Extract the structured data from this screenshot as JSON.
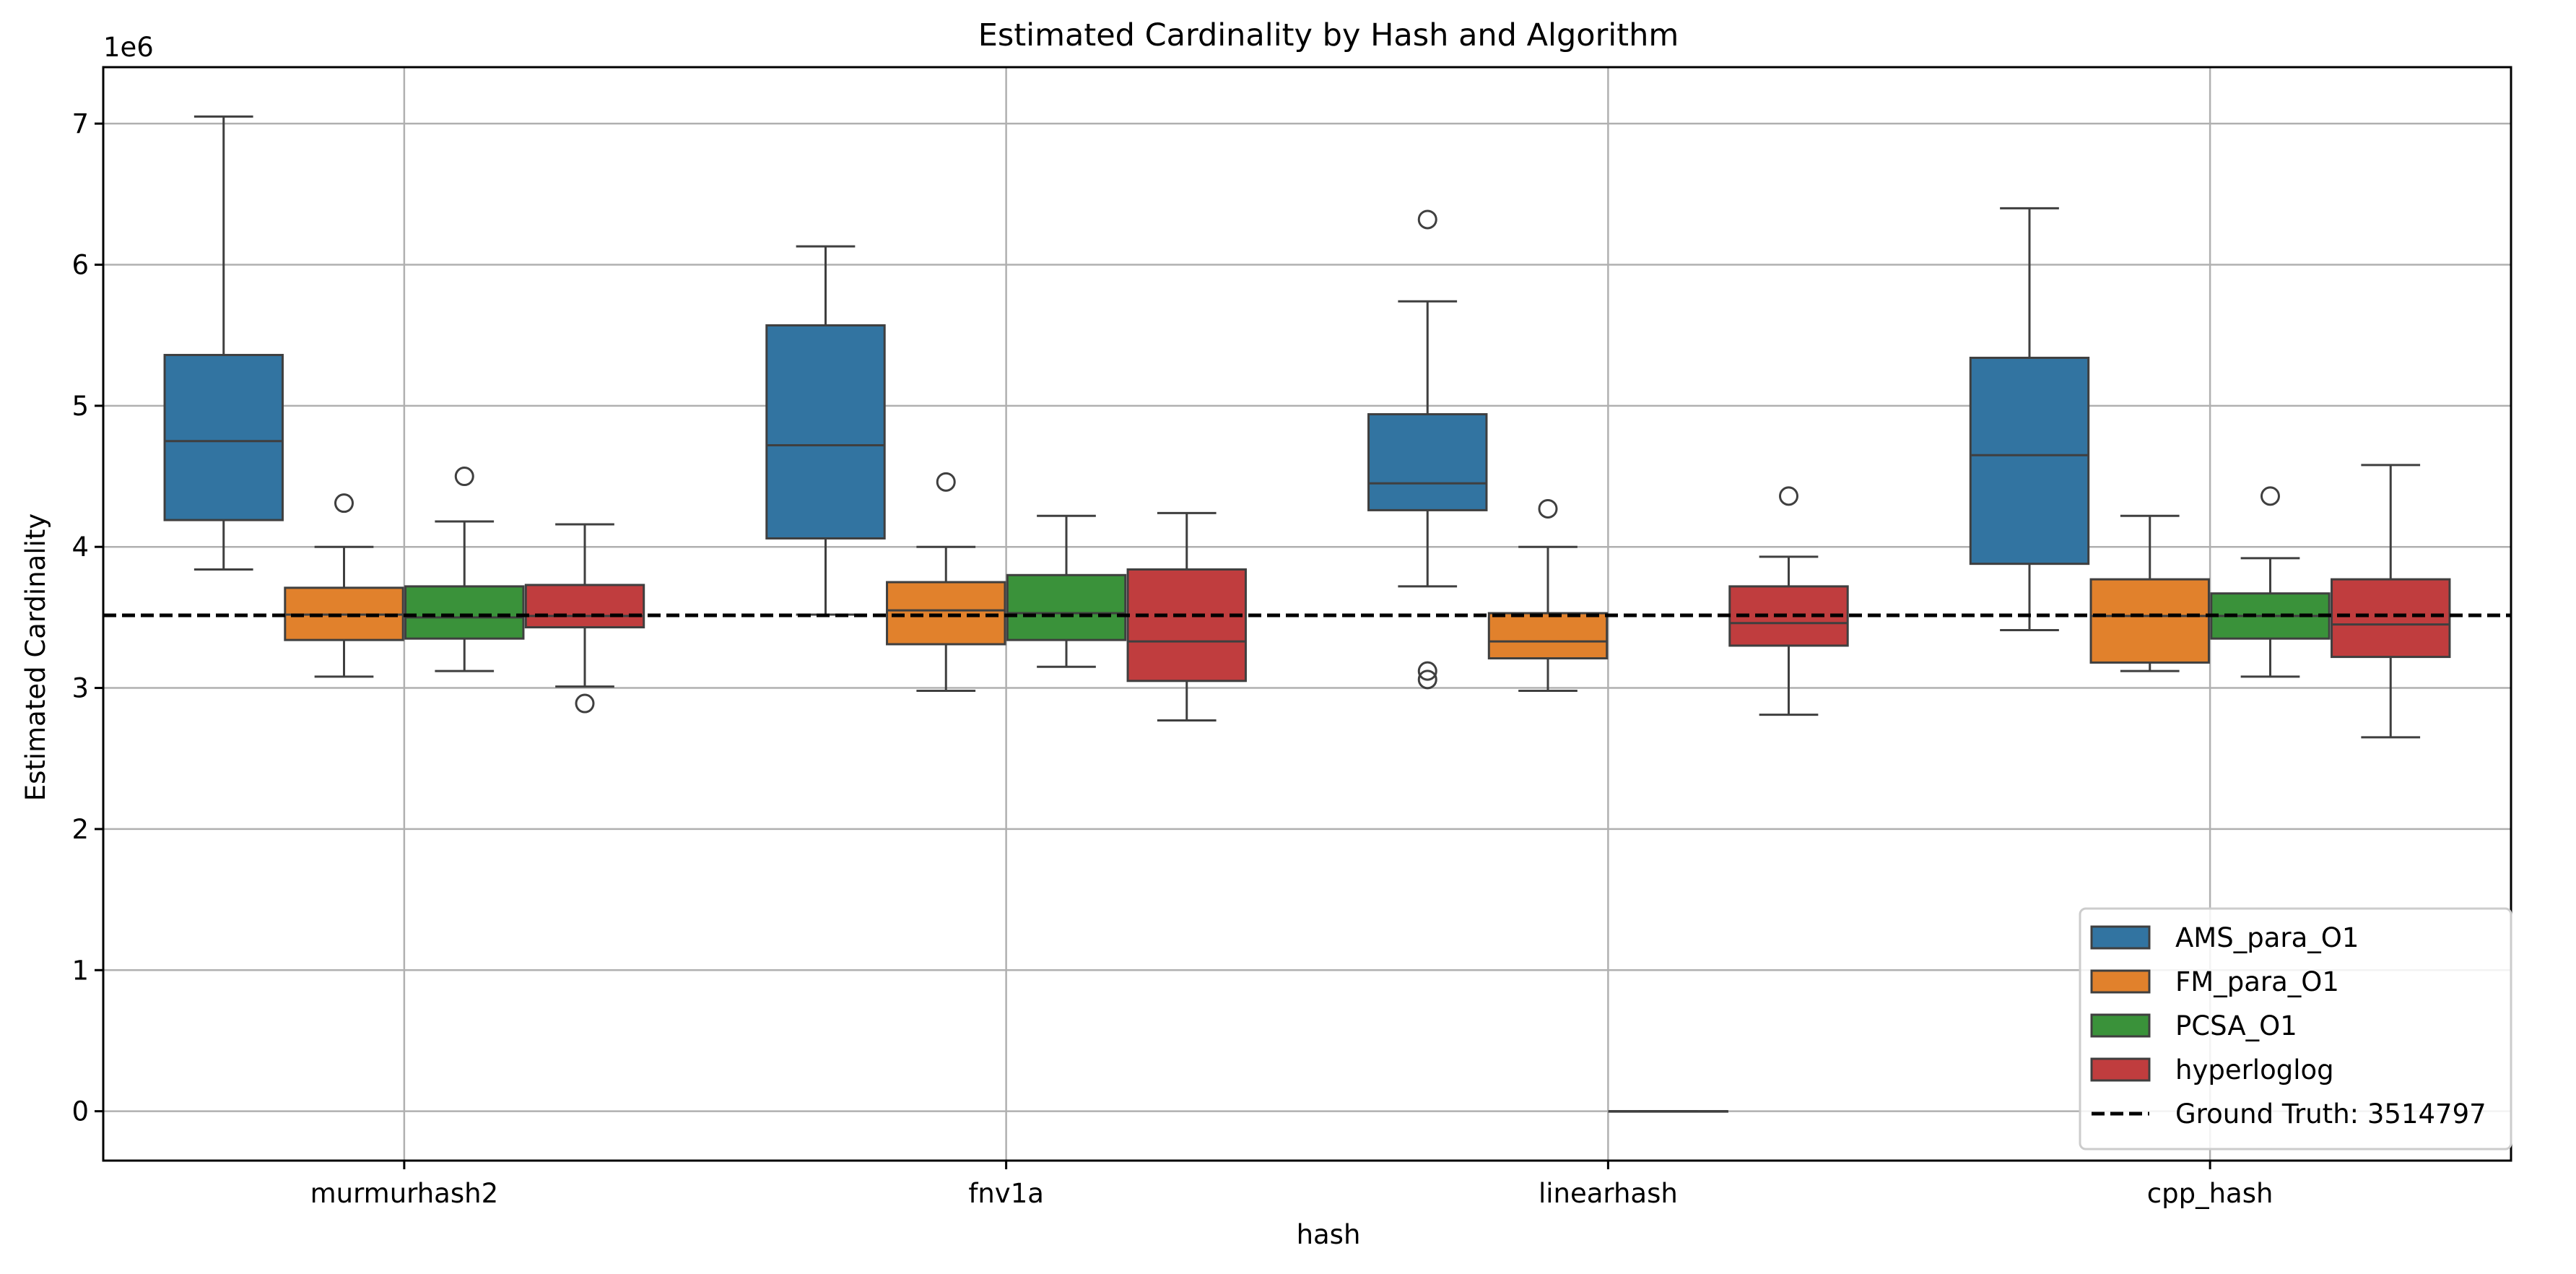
{
  "chart_data": {
    "type": "box",
    "title": "Estimated Cardinality by Hash and Algorithm",
    "xlabel": "hash",
    "ylabel": "Estimated Cardinality",
    "y_offset_label": "1e6",
    "y_scale": 1000000,
    "ylim": [
      -350000,
      7400000
    ],
    "yticks": [
      0,
      1000000,
      2000000,
      3000000,
      4000000,
      5000000,
      6000000,
      7000000
    ],
    "ytick_labels": [
      "0",
      "1",
      "2",
      "3",
      "4",
      "5",
      "6",
      "7"
    ],
    "grid": true,
    "legend_position": "bottom-right",
    "categories": [
      "murmurhash2",
      "fnv1a",
      "linearhash",
      "cpp_hash"
    ],
    "colors": {
      "AMS_para_O1": "#3274a1",
      "FM_para_O1": "#e1812c",
      "PCSA_O1": "#3a923a",
      "hyperloglog": "#c03d3e",
      "box_edge": "#3f3f3f",
      "grid": "#b0b0b0"
    },
    "series": [
      {
        "name": "AMS_para_O1",
        "boxes": [
          {
            "category": "murmurhash2",
            "whisker_low": 3840000,
            "q1": 4190000,
            "median": 4750000,
            "q3": 5360000,
            "whisker_high": 7050000,
            "outliers": []
          },
          {
            "category": "fnv1a",
            "whisker_low": 3520000,
            "q1": 4060000,
            "median": 4720000,
            "q3": 5570000,
            "whisker_high": 6130000,
            "outliers": []
          },
          {
            "category": "linearhash",
            "whisker_low": 3720000,
            "q1": 4260000,
            "median": 4450000,
            "q3": 4940000,
            "whisker_high": 5740000,
            "outliers": [
              6320000,
              3120000,
              3060000
            ]
          },
          {
            "category": "cpp_hash",
            "whisker_low": 3410000,
            "q1": 3880000,
            "median": 4650000,
            "q3": 5340000,
            "whisker_high": 6400000,
            "outliers": []
          }
        ]
      },
      {
        "name": "FM_para_O1",
        "boxes": [
          {
            "category": "murmurhash2",
            "whisker_low": 3080000,
            "q1": 3340000,
            "median": 3520000,
            "q3": 3710000,
            "whisker_high": 4000000,
            "outliers": [
              4310000
            ]
          },
          {
            "category": "fnv1a",
            "whisker_low": 2980000,
            "q1": 3310000,
            "median": 3550000,
            "q3": 3750000,
            "whisker_high": 4000000,
            "outliers": [
              4460000
            ]
          },
          {
            "category": "linearhash",
            "whisker_low": 2980000,
            "q1": 3210000,
            "median": 3330000,
            "q3": 3530000,
            "whisker_high": 4000000,
            "outliers": [
              4270000
            ]
          },
          {
            "category": "cpp_hash",
            "whisker_low": 3120000,
            "q1": 3180000,
            "median": 3510000,
            "q3": 3770000,
            "whisker_high": 4220000,
            "outliers": []
          }
        ]
      },
      {
        "name": "PCSA_O1",
        "boxes": [
          {
            "category": "murmurhash2",
            "whisker_low": 3120000,
            "q1": 3350000,
            "median": 3500000,
            "q3": 3720000,
            "whisker_high": 4180000,
            "outliers": [
              4500000
            ]
          },
          {
            "category": "fnv1a",
            "whisker_low": 3150000,
            "q1": 3340000,
            "median": 3530000,
            "q3": 3800000,
            "whisker_high": 4220000,
            "outliers": []
          },
          {
            "category": "linearhash",
            "whisker_low": 0,
            "q1": 0,
            "median": 0,
            "q3": 0,
            "whisker_high": 0,
            "outliers": []
          },
          {
            "category": "cpp_hash",
            "whisker_low": 3080000,
            "q1": 3350000,
            "median": 3510000,
            "q3": 3670000,
            "whisker_high": 3920000,
            "outliers": [
              4360000
            ]
          }
        ]
      },
      {
        "name": "hyperloglog",
        "boxes": [
          {
            "category": "murmurhash2",
            "whisker_low": 3010000,
            "q1": 3430000,
            "median": 3510000,
            "q3": 3730000,
            "whisker_high": 4160000,
            "outliers": [
              2890000
            ]
          },
          {
            "category": "fnv1a",
            "whisker_low": 2770000,
            "q1": 3050000,
            "median": 3330000,
            "q3": 3840000,
            "whisker_high": 4240000,
            "outliers": []
          },
          {
            "category": "linearhash",
            "whisker_low": 2810000,
            "q1": 3300000,
            "median": 3460000,
            "q3": 3720000,
            "whisker_high": 3930000,
            "outliers": [
              4360000
            ]
          },
          {
            "category": "cpp_hash",
            "whisker_low": 2650000,
            "q1": 3220000,
            "median": 3450000,
            "q3": 3770000,
            "whisker_high": 4580000,
            "outliers": []
          }
        ]
      }
    ],
    "reference_line": {
      "label": "Ground Truth: 3514797",
      "value": 3514797,
      "color": "#000000",
      "style": "dashed"
    }
  }
}
